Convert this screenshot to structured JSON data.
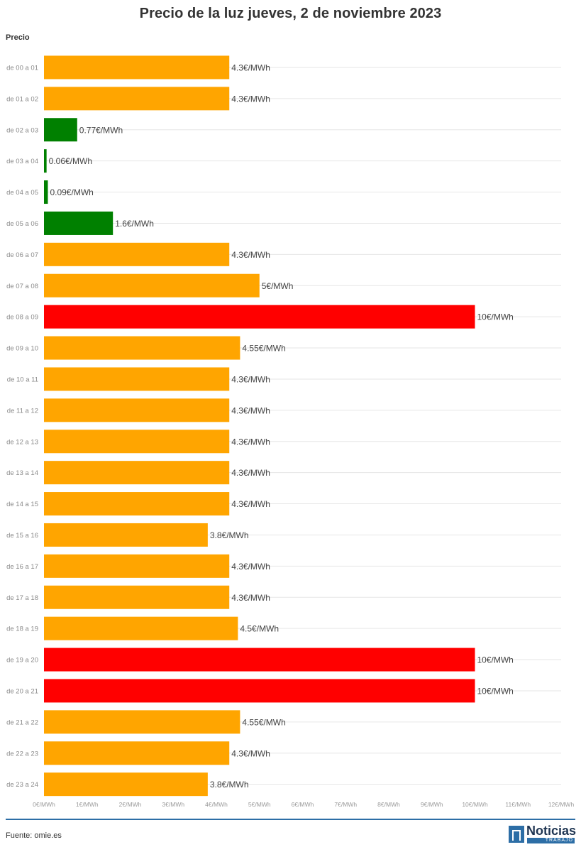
{
  "title": "Precio de la luz jueves, 2 de noviembre 2023",
  "source": "Fuente: omie.es",
  "logo": {
    "name": "Noticias",
    "sub": "TRABAJO"
  },
  "colors": {
    "low": "#008000",
    "mid": "#ffa500",
    "high": "#ff0000",
    "grid": "#e6e6e6",
    "accent": "#2d6ea6"
  },
  "chart_data": {
    "type": "bar",
    "orientation": "horizontal",
    "title": "Precio de la luz jueves, 2 de noviembre 2023",
    "series_label": "Precio",
    "categories": [
      "de 00 a 01",
      "de 01 a 02",
      "de 02 a 03",
      "de 03 a 04",
      "de 04 a 05",
      "de 05 a 06",
      "de 06 a 07",
      "de 07 a 08",
      "de 08 a 09",
      "de 09 a 10",
      "de 10 a 11",
      "de 11 a 12",
      "de 12 a 13",
      "de 13 a 14",
      "de 14 a 15",
      "de 15 a 16",
      "de 16 a 17",
      "de 17 a 18",
      "de 18 a 19",
      "de 19 a 20",
      "de 20 a 21",
      "de 21 a 22",
      "de 22 a 23",
      "de 23 a 24"
    ],
    "values": [
      4.3,
      4.3,
      0.77,
      0.06,
      0.09,
      1.6,
      4.3,
      5,
      10,
      4.55,
      4.3,
      4.3,
      4.3,
      4.3,
      4.3,
      3.8,
      4.3,
      4.3,
      4.5,
      10,
      10,
      4.55,
      4.3,
      3.8
    ],
    "value_labels": [
      "4.3€/MWh",
      "4.3€/MWh",
      "0.77€/MWh",
      "0.06€/MWh",
      "0.09€/MWh",
      "1.6€/MWh",
      "4.3€/MWh",
      "5€/MWh",
      "10€/MWh",
      "4.55€/MWh",
      "4.3€/MWh",
      "4.3€/MWh",
      "4.3€/MWh",
      "4.3€/MWh",
      "4.3€/MWh",
      "3.8€/MWh",
      "4.3€/MWh",
      "4.3€/MWh",
      "4.5€/MWh",
      "10€/MWh",
      "10€/MWh",
      "4.55€/MWh",
      "4.3€/MWh",
      "3.8€/MWh"
    ],
    "color_levels": [
      "mid",
      "mid",
      "low",
      "low",
      "low",
      "low",
      "mid",
      "mid",
      "high",
      "mid",
      "mid",
      "mid",
      "mid",
      "mid",
      "mid",
      "mid",
      "mid",
      "mid",
      "mid",
      "high",
      "high",
      "mid",
      "mid",
      "mid"
    ],
    "xlim": [
      0,
      12
    ],
    "x_ticks": [
      "0€/MWh",
      "1€/MWh",
      "2€/MWh",
      "3€/MWh",
      "4€/MWh",
      "5€/MWh",
      "6€/MWh",
      "7€/MWh",
      "8€/MWh",
      "9€/MWh",
      "10€/MWh",
      "11€/MWh",
      "12€/MWh"
    ],
    "grid": true,
    "legend": false
  }
}
